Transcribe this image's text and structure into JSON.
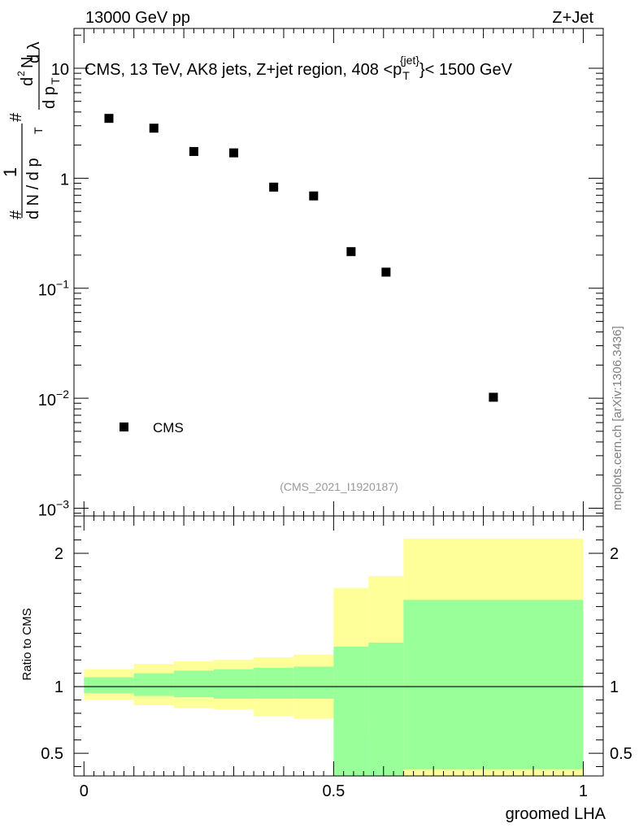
{
  "header": {
    "left": "13000 GeV pp",
    "right": "Z+Jet"
  },
  "watermark": "mcplots.cern.ch [arXiv:1306.3436]",
  "analysis_id": "(CMS_2021_I1920187)",
  "chart_data": [
    {
      "type": "scatter",
      "panel": "main",
      "title": "CMS, 13 TeV, AK8 jets, Z+jet region, 408 <p_T^{jet}< 1500 GeV",
      "title_parts": {
        "prefix": "CMS, 13 TeV, AK8 jets, Z+jet region, 408 <p",
        "sub": "T",
        "sup": "{jet}",
        "suffix": "}< 1500 GeV"
      },
      "ylabel": "1 / (dN / dp_T) · d²N / (dp_T dλ)",
      "ylabel_parts": {
        "one": "1",
        "denominator": "d N / d p",
        "numerator": "d²N",
        "numerator_denominator": "d p",
        "lambda": "dλ",
        "sub": "T",
        "hash": "#",
        "num_top": "d",
        "sup2": "2",
        "num_N": "N",
        "dl_label": "d λ"
      },
      "yscale": "log",
      "ylim": [
        0.00085,
        23
      ],
      "xlim": [
        -0.02,
        1.04
      ],
      "yticks": [
        {
          "value": 10,
          "base": "10",
          "exp": ""
        },
        {
          "value": 1,
          "base": "1",
          "exp": ""
        },
        {
          "value": 0.1,
          "base": "10",
          "exp": "−1"
        },
        {
          "value": 0.01,
          "base": "10",
          "exp": "−2"
        },
        {
          "value": 0.001,
          "base": "10",
          "exp": "−3"
        }
      ],
      "legend": {
        "entries": [
          {
            "name": "CMS",
            "marker": "square",
            "color": "#000000"
          }
        ],
        "location": "lower-left"
      },
      "series": [
        {
          "name": "CMS",
          "color": "#000000",
          "x": [
            0.05,
            0.14,
            0.22,
            0.3,
            0.38,
            0.46,
            0.535,
            0.605,
            0.82
          ],
          "y": [
            3.5,
            2.85,
            1.75,
            1.7,
            0.83,
            0.69,
            0.215,
            0.14,
            0.0102
          ]
        }
      ]
    },
    {
      "type": "area",
      "panel": "ratio",
      "ylabel": "Ratio to CMS",
      "xlabel": "groomed LHA",
      "xlim": [
        -0.02,
        1.04
      ],
      "ylim": [
        0.33,
        2.28
      ],
      "xticks": [
        {
          "value": 0,
          "label": "0"
        },
        {
          "value": 0.5,
          "label": "0.5"
        },
        {
          "value": 1,
          "label": "1"
        }
      ],
      "yticks": [
        {
          "value": 0.5,
          "label": "0.5"
        },
        {
          "value": 1,
          "label": "1"
        },
        {
          "value": 2,
          "label": "2"
        }
      ],
      "reference_line": 1,
      "bins": {
        "edges": [
          0,
          0.1,
          0.18,
          0.26,
          0.34,
          0.42,
          0.5,
          0.57,
          0.64,
          1.0
        ],
        "stat_band": {
          "color": "#99ff99",
          "low": [
            0.95,
            0.93,
            0.92,
            0.91,
            0.91,
            0.91,
            0.0,
            0.0,
            0.38
          ],
          "high": [
            1.07,
            1.1,
            1.12,
            1.13,
            1.14,
            1.15,
            1.3,
            1.33,
            1.65
          ]
        },
        "total_band": {
          "color": "#ffff99",
          "low": [
            0.9,
            0.86,
            0.84,
            0.83,
            0.78,
            0.76,
            0.71,
            0.64,
            0.0
          ],
          "high": [
            1.13,
            1.17,
            1.19,
            1.2,
            1.22,
            1.24,
            1.74,
            1.83,
            2.11
          ]
        }
      }
    }
  ]
}
